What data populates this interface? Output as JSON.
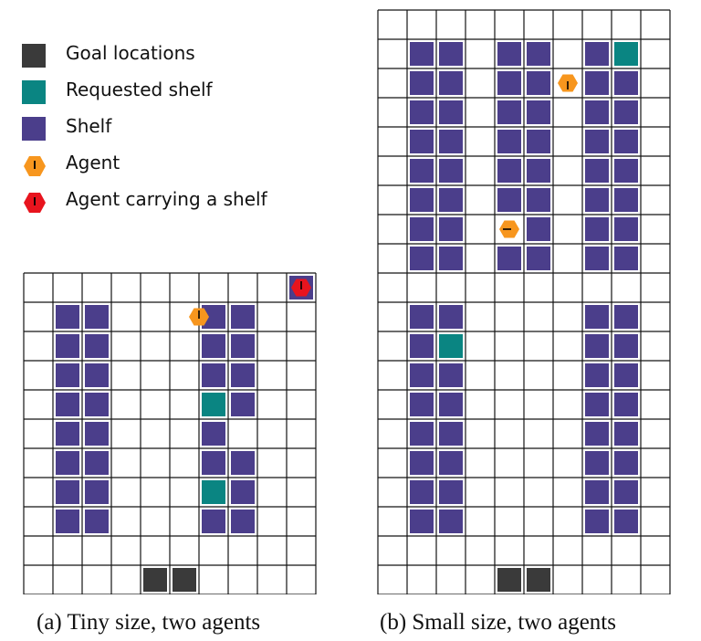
{
  "legend": {
    "items": [
      {
        "label": "Goal locations",
        "kind": "goal"
      },
      {
        "label": "Requested shelf",
        "kind": "requested"
      },
      {
        "label": "Shelf",
        "kind": "shelf"
      },
      {
        "label": "Agent",
        "kind": "agent"
      },
      {
        "label": "Agent carrying a shelf",
        "kind": "agent_carrying"
      }
    ]
  },
  "colors": {
    "goal": "#3a3a3a",
    "requested": "#0a8582",
    "shelf": "#4b3e8b",
    "agent": "#f7961e",
    "agent_carrying": "#e8141e",
    "grid_line": "#141414"
  },
  "captions": {
    "tiny": "(a) Tiny size, two agents",
    "small": "(b) Small size, two agents"
  },
  "warehouses": {
    "tiny": {
      "cols": 10,
      "rows": 11,
      "shelves": [
        [
          1,
          1
        ],
        [
          2,
          1
        ],
        [
          6,
          1
        ],
        [
          7,
          1
        ],
        [
          1,
          2
        ],
        [
          2,
          2
        ],
        [
          6,
          2
        ],
        [
          7,
          2
        ],
        [
          1,
          3
        ],
        [
          2,
          3
        ],
        [
          6,
          3
        ],
        [
          7,
          3
        ],
        [
          1,
          4
        ],
        [
          2,
          4
        ],
        [
          7,
          4
        ],
        [
          1,
          5
        ],
        [
          2,
          5
        ],
        [
          6,
          5
        ],
        [
          1,
          6
        ],
        [
          2,
          6
        ],
        [
          6,
          6
        ],
        [
          7,
          6
        ],
        [
          1,
          7
        ],
        [
          2,
          7
        ],
        [
          7,
          7
        ],
        [
          1,
          8
        ],
        [
          2,
          8
        ],
        [
          6,
          8
        ],
        [
          7,
          8
        ],
        [
          9,
          0
        ]
      ],
      "requested": [
        [
          6,
          4
        ],
        [
          6,
          7
        ]
      ],
      "goals": [
        [
          4,
          10
        ],
        [
          5,
          10
        ]
      ],
      "agents": [
        {
          "col": 6,
          "row": 1,
          "dir": "up",
          "carrying": false,
          "on_left_of_cell": true
        },
        {
          "col": 9,
          "row": 0,
          "dir": "up",
          "carrying": true
        }
      ]
    },
    "small": {
      "cols": 10,
      "rows": 20,
      "shelves": [
        [
          1,
          1
        ],
        [
          2,
          1
        ],
        [
          4,
          1
        ],
        [
          5,
          1
        ],
        [
          7,
          1
        ],
        [
          1,
          2
        ],
        [
          2,
          2
        ],
        [
          4,
          2
        ],
        [
          5,
          2
        ],
        [
          7,
          2
        ],
        [
          8,
          2
        ],
        [
          1,
          3
        ],
        [
          2,
          3
        ],
        [
          4,
          3
        ],
        [
          5,
          3
        ],
        [
          7,
          3
        ],
        [
          8,
          3
        ],
        [
          1,
          4
        ],
        [
          2,
          4
        ],
        [
          4,
          4
        ],
        [
          5,
          4
        ],
        [
          7,
          4
        ],
        [
          8,
          4
        ],
        [
          1,
          5
        ],
        [
          2,
          5
        ],
        [
          4,
          5
        ],
        [
          5,
          5
        ],
        [
          7,
          5
        ],
        [
          8,
          5
        ],
        [
          1,
          6
        ],
        [
          2,
          6
        ],
        [
          4,
          6
        ],
        [
          5,
          6
        ],
        [
          7,
          6
        ],
        [
          8,
          6
        ],
        [
          1,
          7
        ],
        [
          2,
          7
        ],
        [
          5,
          7
        ],
        [
          7,
          7
        ],
        [
          8,
          7
        ],
        [
          1,
          8
        ],
        [
          2,
          8
        ],
        [
          4,
          8
        ],
        [
          5,
          8
        ],
        [
          7,
          8
        ],
        [
          8,
          8
        ],
        [
          1,
          10
        ],
        [
          2,
          10
        ],
        [
          7,
          10
        ],
        [
          8,
          10
        ],
        [
          1,
          11
        ],
        [
          7,
          11
        ],
        [
          8,
          11
        ],
        [
          1,
          12
        ],
        [
          2,
          12
        ],
        [
          7,
          12
        ],
        [
          8,
          12
        ],
        [
          1,
          13
        ],
        [
          2,
          13
        ],
        [
          7,
          13
        ],
        [
          8,
          13
        ],
        [
          1,
          14
        ],
        [
          2,
          14
        ],
        [
          7,
          14
        ],
        [
          8,
          14
        ],
        [
          1,
          15
        ],
        [
          2,
          15
        ],
        [
          7,
          15
        ],
        [
          8,
          15
        ],
        [
          1,
          16
        ],
        [
          2,
          16
        ],
        [
          7,
          16
        ],
        [
          8,
          16
        ],
        [
          1,
          17
        ],
        [
          2,
          17
        ],
        [
          7,
          17
        ],
        [
          8,
          17
        ]
      ],
      "requested": [
        [
          8,
          1
        ],
        [
          2,
          11
        ]
      ],
      "goals": [
        [
          4,
          19
        ],
        [
          5,
          19
        ]
      ],
      "agents": [
        {
          "col": 6,
          "row": 2,
          "dir": "down",
          "carrying": false
        },
        {
          "col": 4,
          "row": 7,
          "dir": "left",
          "carrying": false
        }
      ]
    }
  }
}
